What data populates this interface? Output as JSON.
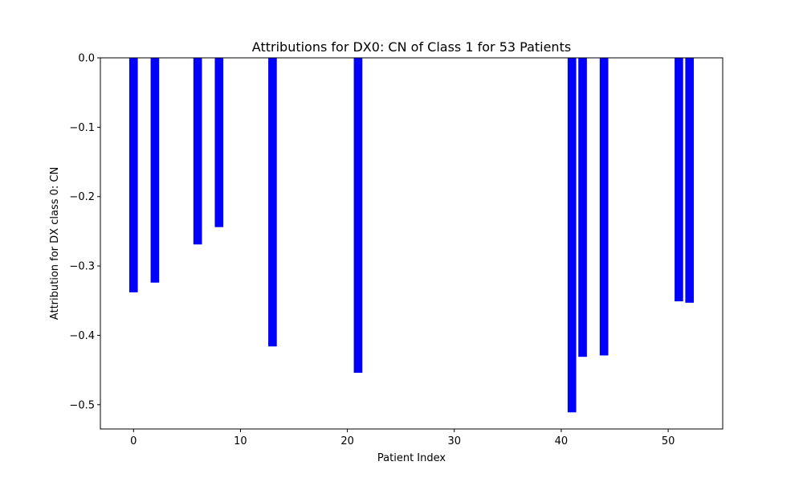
{
  "chart_data": {
    "type": "bar",
    "title": "Attributions for DX0: CN of Class 1 for 53 Patients",
    "xlabel": "Patient Index",
    "ylabel": "Attribution for DX class 0: CN",
    "bar_color": "#0000ff",
    "xlim": [
      -3.1,
      55.1
    ],
    "ylim": [
      -0.535,
      0.0
    ],
    "bar_width": 0.8,
    "xticks": [
      0,
      10,
      20,
      30,
      40,
      50
    ],
    "xtick_labels": [
      "0",
      "10",
      "20",
      "30",
      "40",
      "50"
    ],
    "yticks": [
      0.0,
      -0.1,
      -0.2,
      -0.3,
      -0.4,
      -0.5
    ],
    "ytick_labels": [
      "0.0",
      "−0.1",
      "−0.2",
      "−0.3",
      "−0.4",
      "−0.5"
    ],
    "grid": false,
    "x": [
      0,
      2,
      6,
      8,
      13,
      21,
      41,
      42,
      44,
      51,
      52
    ],
    "values": [
      -0.338,
      -0.324,
      -0.269,
      -0.244,
      -0.416,
      -0.454,
      -0.511,
      -0.431,
      -0.429,
      -0.351,
      -0.353
    ]
  }
}
